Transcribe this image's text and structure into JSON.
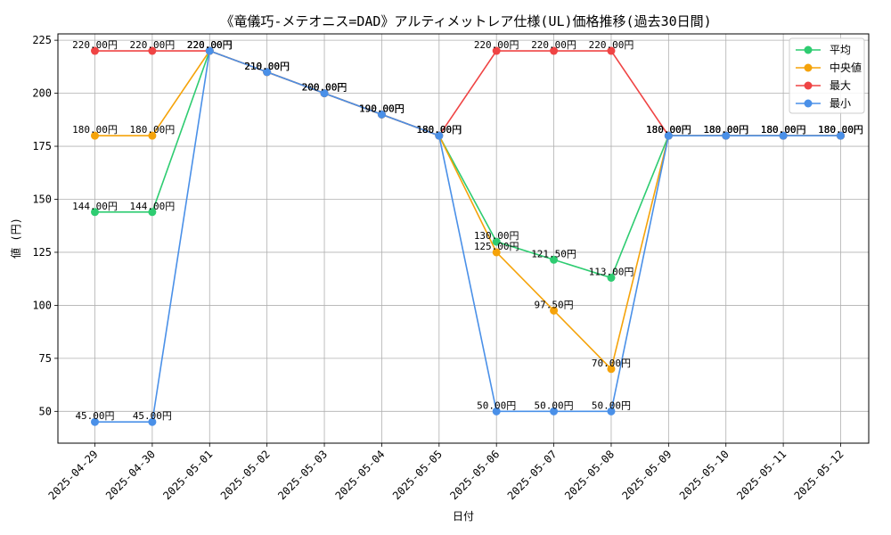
{
  "chart_data": {
    "type": "line",
    "title": "《竜儀巧-メテオニス=DAD》アルティメットレア仕様(UL)価格推移(過去30日間)",
    "xlabel": "日付",
    "ylabel": "値 (円)",
    "ylim": [
      35,
      228
    ],
    "yticks": [
      50,
      75,
      100,
      125,
      150,
      175,
      200,
      225
    ],
    "ytick_labels": [
      "50",
      "75",
      "100",
      "125",
      "150",
      "175",
      "200",
      "225"
    ],
    "grid": true,
    "legend_position": "top-right",
    "categories": [
      "2025-04-29",
      "2025-04-30",
      "2025-05-01",
      "2025-05-02",
      "2025-05-03",
      "2025-05-04",
      "2025-05-05",
      "2025-05-06",
      "2025-05-07",
      "2025-05-08",
      "2025-05-09",
      "2025-05-10",
      "2025-05-11",
      "2025-05-12"
    ],
    "series": [
      {
        "name": "平均",
        "color": "#2ecc71",
        "values": [
          144,
          144,
          220,
          210,
          200,
          190,
          180,
          130,
          121.5,
          113,
          180,
          180,
          180,
          180
        ],
        "labels": [
          "144.00円",
          "144.00円",
          "220.00円",
          "210.00円",
          "200.00円",
          "190.00円",
          "180.00円",
          "130.00円",
          "121.50円",
          "113.00円",
          "180.00円",
          "180.00円",
          "180.00円",
          "180.00円"
        ]
      },
      {
        "name": "中央値",
        "color": "#f5a30a",
        "values": [
          180,
          180,
          220,
          210,
          200,
          190,
          180,
          125,
          97.5,
          70,
          180,
          180,
          180,
          180
        ],
        "labels": [
          "180.00円",
          "180.00円",
          "220.00円",
          "210.00円",
          "200.00円",
          "190.00円",
          "180.00円",
          "125.00円",
          "97.50円",
          "70.00円",
          "180.00円",
          "180.00円",
          "180.00円",
          "180.00円"
        ]
      },
      {
        "name": "最大",
        "color": "#ef4444",
        "values": [
          220,
          220,
          220,
          210,
          200,
          190,
          180,
          220,
          220,
          220,
          180,
          180,
          180,
          180
        ],
        "labels": [
          "220.00円",
          "220.00円",
          "220.00円",
          "210.00円",
          "200.00円",
          "190.00円",
          "180.00円",
          "220.00円",
          "220.00円",
          "220.00円",
          "180.00円",
          "180.00円",
          "180.00円",
          "180.00円"
        ]
      },
      {
        "name": "最小",
        "color": "#4a90e8",
        "values": [
          45,
          45,
          220,
          210,
          200,
          190,
          180,
          50,
          50,
          50,
          180,
          180,
          180,
          180
        ],
        "labels": [
          "45.00円",
          "45.00円",
          "220.00円",
          "210.00円",
          "200.00円",
          "190.00円",
          "180.00円",
          "50.00円",
          "50.00円",
          "50.00円",
          "180.00円",
          "180.00円",
          "180.00円",
          "180.00円"
        ]
      }
    ]
  }
}
